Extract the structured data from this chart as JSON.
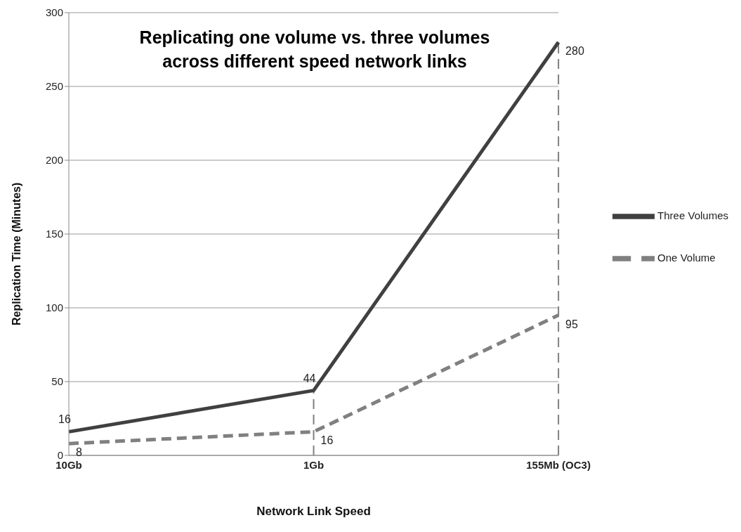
{
  "chart_data": {
    "type": "line",
    "title": "Replicating one volume vs. three volumes\nacross different speed network links",
    "xlabel": "Network Link Speed",
    "ylabel": "Replication Time (Minutes)",
    "categories": [
      "10Gb",
      "1Gb",
      "155Mb (OC3)"
    ],
    "series": [
      {
        "name": "Three Volumes",
        "color": "#404040",
        "values": [
          16,
          44,
          280
        ],
        "line_style": "solid"
      },
      {
        "name": "One Volume",
        "color": "#808080",
        "values": [
          8,
          16,
          95
        ],
        "line_style": "dashed"
      }
    ],
    "ref_lines": [
      {
        "axis": "x",
        "value": "1Gb",
        "color": "#808080",
        "line_style": "dashed"
      },
      {
        "axis": "x",
        "value": "155Mb (OC3)",
        "color": "#808080",
        "line_style": "dashed"
      }
    ],
    "ylim": [
      0,
      300
    ],
    "yticks": [
      0,
      50,
      100,
      150,
      200,
      250,
      300
    ],
    "grid": "y",
    "legend": "right",
    "data_labels": true,
    "marker": "none"
  }
}
